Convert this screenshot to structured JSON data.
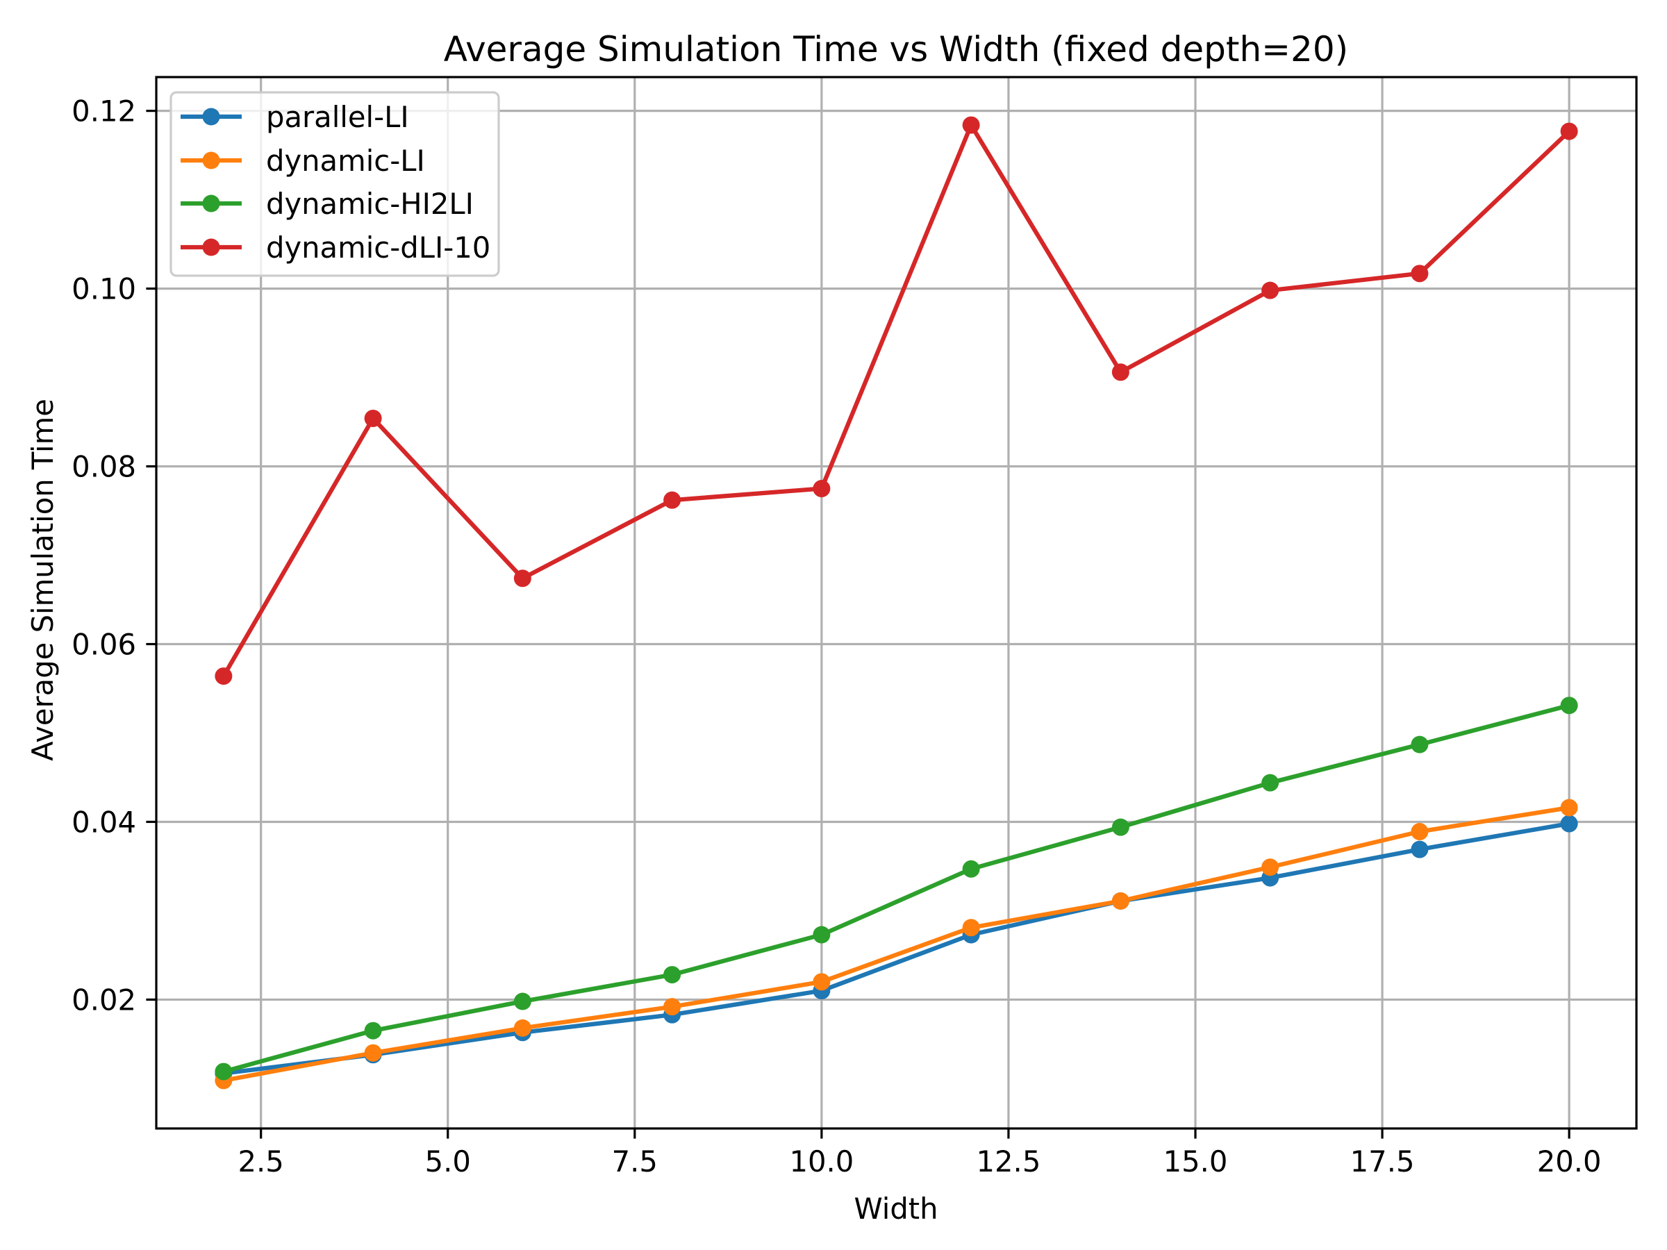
{
  "chart_data": {
    "type": "line",
    "title": "Average Simulation Time vs Width (fixed depth=20)",
    "xlabel": "Width",
    "ylabel": "Average Simulation Time",
    "x": [
      2,
      4,
      6,
      8,
      10,
      12,
      14,
      16,
      18,
      20
    ],
    "xlim": [
      1.1,
      20.9
    ],
    "ylim": [
      0.0055,
      0.1238
    ],
    "xticks": [
      2.5,
      5.0,
      7.5,
      10.0,
      12.5,
      15.0,
      17.5,
      20.0
    ],
    "xtick_labels": [
      "2.5",
      "5.0",
      "7.5",
      "10.0",
      "12.5",
      "15.0",
      "17.5",
      "20.0"
    ],
    "yticks": [
      0.02,
      0.04,
      0.06,
      0.08,
      0.1,
      0.12
    ],
    "ytick_labels": [
      "0.02",
      "0.04",
      "0.06",
      "0.08",
      "0.10",
      "0.12"
    ],
    "grid": true,
    "legend_position": "top-left",
    "series": [
      {
        "name": "parallel-LI",
        "color": "#1f77b4",
        "marker": "circle",
        "values": [
          0.0117,
          0.0138,
          0.0163,
          0.0183,
          0.021,
          0.0273,
          0.0311,
          0.0337,
          0.0369,
          0.0398
        ]
      },
      {
        "name": "dynamic-LI",
        "color": "#ff7f0e",
        "marker": "circle",
        "values": [
          0.0109,
          0.014,
          0.0168,
          0.0192,
          0.022,
          0.0281,
          0.0311,
          0.0349,
          0.0389,
          0.0416
        ]
      },
      {
        "name": "dynamic-HI2LI",
        "color": "#2ca02c",
        "marker": "circle",
        "values": [
          0.0119,
          0.0165,
          0.0198,
          0.0228,
          0.0273,
          0.0347,
          0.0394,
          0.0444,
          0.0487,
          0.0531
        ]
      },
      {
        "name": "dynamic-dLI-10",
        "color": "#d62728",
        "marker": "circle",
        "values": [
          0.0564,
          0.0854,
          0.0674,
          0.0762,
          0.0775,
          0.1184,
          0.0906,
          0.0998,
          0.1017,
          0.1177
        ]
      }
    ]
  }
}
